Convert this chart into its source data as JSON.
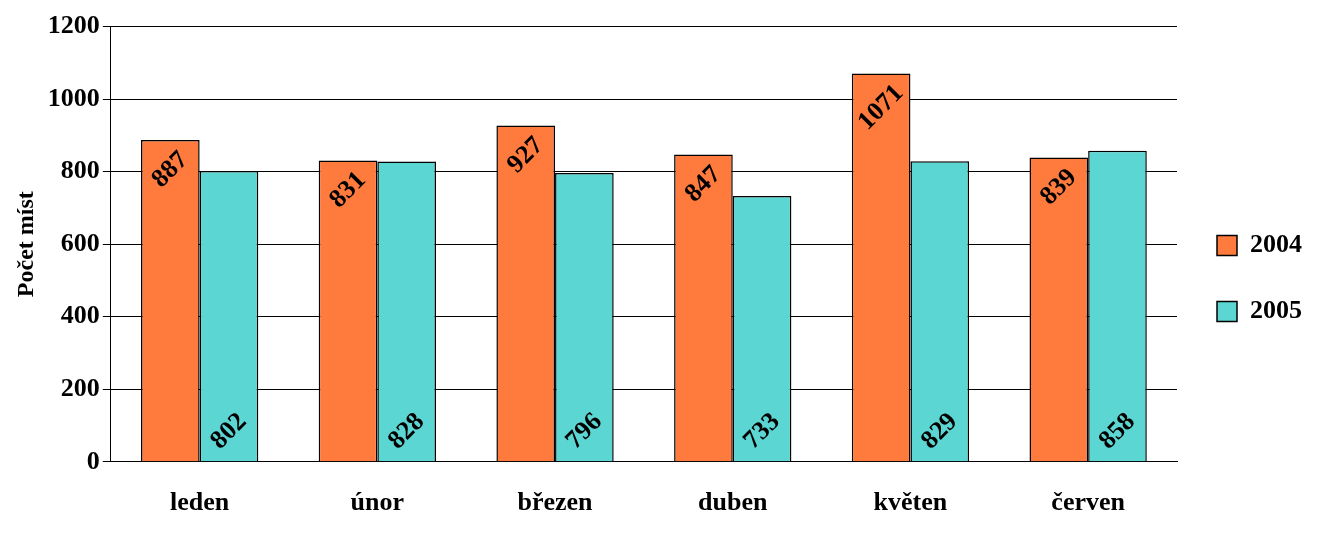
{
  "chart_data": {
    "type": "bar",
    "ylabel": "Počet míst",
    "categories": [
      "leden",
      "únor",
      "březen",
      "duben",
      "květen",
      "červen"
    ],
    "series": [
      {
        "name": "2004",
        "color": "#ff7a3d",
        "values": [
          887,
          831,
          927,
          847,
          1071,
          839
        ]
      },
      {
        "name": "2005",
        "color": "#5cd6d2",
        "values": [
          802,
          828,
          796,
          733,
          829,
          858
        ]
      }
    ],
    "ylim": [
      0,
      1200
    ],
    "yticks": [
      0,
      200,
      400,
      600,
      800,
      1000,
      1200
    ],
    "grid": "y",
    "legend": "right",
    "data_labels": true
  }
}
